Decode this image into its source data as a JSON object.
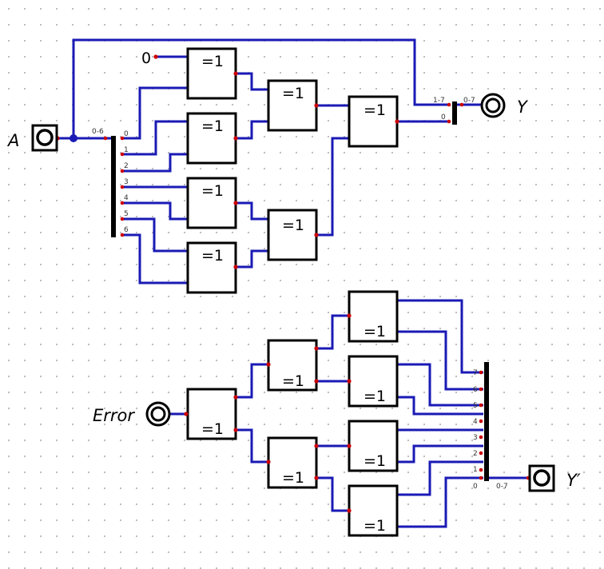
{
  "colors": {
    "wire": "#1a1ab5",
    "pin": "#cc0000",
    "grid_dot": "#b8b8b8",
    "gate_stroke": "#000000"
  },
  "gates": {
    "xor_label": "=1"
  },
  "inputs": {
    "a_label": "A",
    "error_label": "Error",
    "const_zero": "0"
  },
  "outputs": {
    "y_label": "Y",
    "y_prime_label": "Y′"
  },
  "splitter_top": {
    "bus_label": "0-6",
    "pins": [
      "0",
      "1",
      "2",
      "3",
      "4",
      "5",
      "6"
    ]
  },
  "combiner_y": {
    "upper_label": "1-7",
    "lower_label": "0",
    "out_label": "0-7"
  },
  "combiner_bottom": {
    "pins": [
      "7",
      "6",
      "5",
      "4",
      "3",
      "2",
      "1",
      "0"
    ],
    "out_label": "0-7"
  },
  "icons": {
    "input_pin": "square-input-pin-icon",
    "output_pin": "double-ring-output-pin-icon",
    "probe": "double-ring-probe-icon"
  }
}
